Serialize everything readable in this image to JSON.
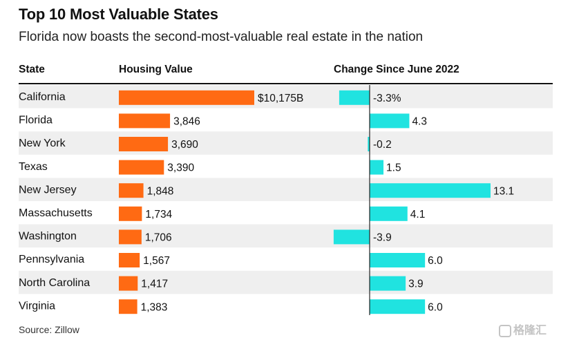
{
  "chart_data": {
    "type": "table",
    "title": "Top 10 Most Valuable States",
    "subtitle": "Florida now boasts the second-most-valuable real estate in the nation",
    "columns": [
      "State",
      "Housing Value",
      "Change Since June 2022"
    ],
    "rows": [
      {
        "state": "California",
        "value": 10175,
        "value_label": "$10,175B",
        "change": -3.3,
        "change_label": "-3.3%"
      },
      {
        "state": "Florida",
        "value": 3846,
        "value_label": "3,846",
        "change": 4.3,
        "change_label": "4.3"
      },
      {
        "state": "New York",
        "value": 3690,
        "value_label": "3,690",
        "change": -0.2,
        "change_label": "-0.2"
      },
      {
        "state": "Texas",
        "value": 3390,
        "value_label": "3,390",
        "change": 1.5,
        "change_label": "1.5"
      },
      {
        "state": "New Jersey",
        "value": 1848,
        "value_label": "1,848",
        "change": 13.1,
        "change_label": "13.1"
      },
      {
        "state": "Massachusetts",
        "value": 1734,
        "value_label": "1,734",
        "change": 4.1,
        "change_label": "4.1"
      },
      {
        "state": "Washington",
        "value": 1706,
        "value_label": "1,706",
        "change": -3.9,
        "change_label": "-3.9"
      },
      {
        "state": "Pennsylvania",
        "value": 1567,
        "value_label": "1,567",
        "change": 6.0,
        "change_label": "6.0"
      },
      {
        "state": "North Carolina",
        "value": 1417,
        "value_label": "1,417",
        "change": 3.9,
        "change_label": "3.9"
      },
      {
        "state": "Virginia",
        "value": 1383,
        "value_label": "1,383",
        "change": 6.0,
        "change_label": "6.0"
      }
    ],
    "value_color": "#ff6a13",
    "change_color": "#20e3e0",
    "stripe_color": "#efefef"
  },
  "source": "Source: Zillow",
  "watermark": "格隆汇"
}
